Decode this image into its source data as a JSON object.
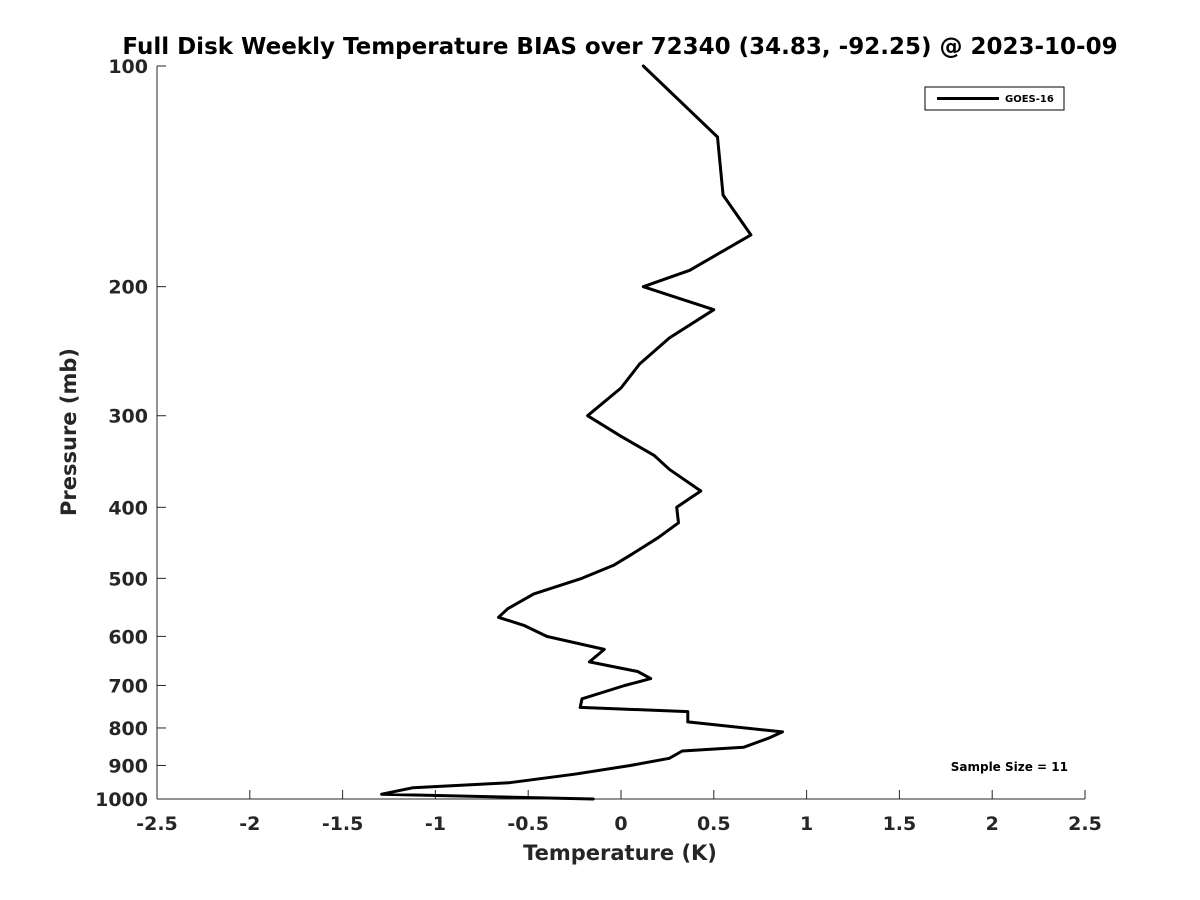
{
  "chart_data": {
    "type": "line",
    "title": "Full Disk Weekly Temperature BIAS over 72340 (34.83, -92.25) @ 2023-10-09",
    "xlabel": "Temperature (K)",
    "ylabel": "Pressure (mb)",
    "xlim": [
      -2.5,
      2.5
    ],
    "ylim": [
      100,
      1000
    ],
    "y_scale": "log",
    "y_reversed": true,
    "x_ticks": [
      -2.5,
      -2,
      -1.5,
      -1,
      -0.5,
      0,
      0.5,
      1,
      1.5,
      2,
      2.5
    ],
    "x_tick_labels": [
      "-2.5",
      "-2",
      "-1.5",
      "-1",
      "-0.5",
      "0",
      "0.5",
      "1",
      "1.5",
      "2",
      "2.5"
    ],
    "y_ticks": [
      100,
      200,
      300,
      400,
      500,
      600,
      700,
      800,
      900,
      1000
    ],
    "y_tick_labels": [
      "100",
      "200",
      "300",
      "400",
      "500",
      "600",
      "700",
      "800",
      "900",
      "1000"
    ],
    "grid": false,
    "legend_position": "top-right",
    "series": [
      {
        "name": "GOES-16",
        "color": "#000000",
        "points": [
          [
            0.12,
            100
          ],
          [
            0.52,
            125
          ],
          [
            0.55,
            150
          ],
          [
            0.7,
            170
          ],
          [
            0.37,
            190
          ],
          [
            0.12,
            200
          ],
          [
            0.5,
            215
          ],
          [
            0.26,
            235
          ],
          [
            0.1,
            255
          ],
          [
            0.0,
            275
          ],
          [
            -0.18,
            300
          ],
          [
            0.0,
            320
          ],
          [
            0.18,
            340
          ],
          [
            0.26,
            355
          ],
          [
            0.43,
            380
          ],
          [
            0.3,
            400
          ],
          [
            0.31,
            420
          ],
          [
            0.2,
            440
          ],
          [
            0.05,
            465
          ],
          [
            -0.04,
            480
          ],
          [
            -0.21,
            500
          ],
          [
            -0.47,
            525
          ],
          [
            -0.61,
            550
          ],
          [
            -0.66,
            565
          ],
          [
            -0.52,
            580
          ],
          [
            -0.4,
            600
          ],
          [
            -0.09,
            625
          ],
          [
            -0.17,
            650
          ],
          [
            0.09,
            670
          ],
          [
            0.16,
            685
          ],
          [
            0.02,
            700
          ],
          [
            -0.21,
            730
          ],
          [
            -0.22,
            750
          ],
          [
            0.36,
            760
          ],
          [
            0.36,
            785
          ],
          [
            0.87,
            810
          ],
          [
            0.8,
            825
          ],
          [
            0.66,
            850
          ],
          [
            0.33,
            860
          ],
          [
            0.26,
            880
          ],
          [
            0.05,
            900
          ],
          [
            -0.25,
            925
          ],
          [
            -0.6,
            950
          ],
          [
            -1.12,
            965
          ],
          [
            -1.29,
            985
          ],
          [
            -0.15,
            1000
          ]
        ]
      }
    ],
    "annotation": "Sample Size = 11"
  }
}
